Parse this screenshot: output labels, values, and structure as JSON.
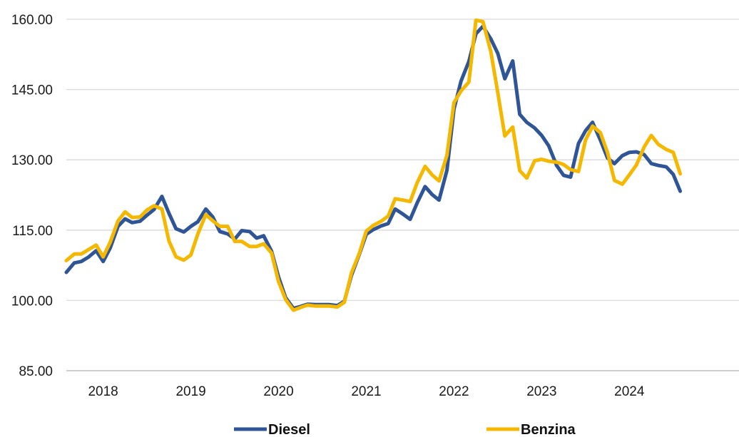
{
  "chart_data": {
    "type": "line",
    "title": "",
    "xlabel": "",
    "ylabel": "",
    "ylim": [
      85,
      160
    ],
    "y_ticks": [
      "85.00",
      "100.00",
      "115.00",
      "130.00",
      "145.00",
      "160.00"
    ],
    "x_tick_labels": [
      "2018",
      "2019",
      "2020",
      "2021",
      "2022",
      "2023",
      "2024"
    ],
    "x_tick_dates": [
      2018.0,
      2019.0,
      2020.0,
      2021.0,
      2022.0,
      2023.0,
      2024.0
    ],
    "xlim": [
      2017.58,
      2025.25
    ],
    "grid": true,
    "legend_position": "bottom",
    "series": [
      {
        "name": "Diesel",
        "color": "#2f5597",
        "points": [
          [
            2017.58,
            106.0
          ],
          [
            2017.67,
            108.0
          ],
          [
            2017.75,
            108.3
          ],
          [
            2017.83,
            109.2
          ],
          [
            2017.92,
            110.6
          ],
          [
            2018.0,
            108.3
          ],
          [
            2018.08,
            111.2
          ],
          [
            2018.17,
            115.8
          ],
          [
            2018.25,
            117.4
          ],
          [
            2018.33,
            116.6
          ],
          [
            2018.42,
            116.9
          ],
          [
            2018.5,
            118.2
          ],
          [
            2018.58,
            119.4
          ],
          [
            2018.67,
            122.2
          ],
          [
            2018.75,
            118.6
          ],
          [
            2018.83,
            115.3
          ],
          [
            2018.92,
            114.6
          ],
          [
            2019.0,
            115.8
          ],
          [
            2019.08,
            116.8
          ],
          [
            2019.17,
            119.5
          ],
          [
            2019.25,
            117.8
          ],
          [
            2019.33,
            114.7
          ],
          [
            2019.42,
            114.2
          ],
          [
            2019.5,
            113.1
          ],
          [
            2019.58,
            114.9
          ],
          [
            2019.67,
            114.7
          ],
          [
            2019.75,
            113.3
          ],
          [
            2019.83,
            113.8
          ],
          [
            2019.92,
            110.5
          ],
          [
            2020.0,
            105.0
          ],
          [
            2020.08,
            100.6
          ],
          [
            2020.17,
            98.3
          ],
          [
            2020.25,
            98.7
          ],
          [
            2020.33,
            99.2
          ],
          [
            2020.42,
            99.1
          ],
          [
            2020.5,
            99.1
          ],
          [
            2020.58,
            99.1
          ],
          [
            2020.67,
            98.9
          ],
          [
            2020.75,
            99.8
          ],
          [
            2020.83,
            105.3
          ],
          [
            2020.92,
            109.8
          ],
          [
            2021.0,
            114.1
          ],
          [
            2021.08,
            115.1
          ],
          [
            2021.17,
            115.9
          ],
          [
            2021.25,
            116.4
          ],
          [
            2021.33,
            119.5
          ],
          [
            2021.42,
            118.4
          ],
          [
            2021.5,
            117.3
          ],
          [
            2021.58,
            120.8
          ],
          [
            2021.67,
            124.3
          ],
          [
            2021.75,
            122.6
          ],
          [
            2021.83,
            121.4
          ],
          [
            2021.92,
            127.8
          ],
          [
            2022.0,
            140.8
          ],
          [
            2022.08,
            146.8
          ],
          [
            2022.17,
            151.0
          ],
          [
            2022.25,
            156.9
          ],
          [
            2022.33,
            158.5
          ],
          [
            2022.42,
            155.8
          ],
          [
            2022.5,
            152.7
          ],
          [
            2022.58,
            147.3
          ],
          [
            2022.67,
            151.1
          ],
          [
            2022.75,
            139.7
          ],
          [
            2022.83,
            138.0
          ],
          [
            2022.92,
            136.8
          ],
          [
            2023.0,
            135.2
          ],
          [
            2023.08,
            133.0
          ],
          [
            2023.17,
            128.8
          ],
          [
            2023.25,
            126.7
          ],
          [
            2023.33,
            126.3
          ],
          [
            2023.42,
            133.5
          ],
          [
            2023.5,
            136.2
          ],
          [
            2023.58,
            138.0
          ],
          [
            2023.67,
            134.2
          ],
          [
            2023.75,
            130.4
          ],
          [
            2023.83,
            129.2
          ],
          [
            2023.92,
            130.9
          ],
          [
            2024.0,
            131.6
          ],
          [
            2024.08,
            131.7
          ],
          [
            2024.17,
            131.1
          ],
          [
            2024.25,
            129.2
          ],
          [
            2024.33,
            128.8
          ],
          [
            2024.42,
            128.5
          ],
          [
            2024.5,
            126.9
          ],
          [
            2024.58,
            123.3
          ]
        ]
      },
      {
        "name": "Benzina",
        "color": "#f4b800",
        "points": [
          [
            2017.58,
            108.5
          ],
          [
            2017.67,
            109.9
          ],
          [
            2017.75,
            109.9
          ],
          [
            2017.83,
            110.8
          ],
          [
            2017.92,
            111.8
          ],
          [
            2018.0,
            109.3
          ],
          [
            2018.08,
            112.4
          ],
          [
            2018.17,
            117.0
          ],
          [
            2018.25,
            118.9
          ],
          [
            2018.33,
            117.7
          ],
          [
            2018.42,
            117.8
          ],
          [
            2018.5,
            119.3
          ],
          [
            2018.58,
            120.2
          ],
          [
            2018.67,
            119.5
          ],
          [
            2018.75,
            112.7
          ],
          [
            2018.83,
            109.3
          ],
          [
            2018.92,
            108.6
          ],
          [
            2019.0,
            109.7
          ],
          [
            2019.08,
            114.2
          ],
          [
            2019.17,
            118.3
          ],
          [
            2019.25,
            117.0
          ],
          [
            2019.33,
            115.8
          ],
          [
            2019.42,
            115.8
          ],
          [
            2019.5,
            112.6
          ],
          [
            2019.58,
            112.6
          ],
          [
            2019.67,
            111.5
          ],
          [
            2019.75,
            111.5
          ],
          [
            2019.83,
            112.1
          ],
          [
            2019.92,
            110.1
          ],
          [
            2020.0,
            104.0
          ],
          [
            2020.08,
            100.2
          ],
          [
            2020.17,
            97.9
          ],
          [
            2020.25,
            98.5
          ],
          [
            2020.33,
            99.0
          ],
          [
            2020.42,
            98.8
          ],
          [
            2020.5,
            98.8
          ],
          [
            2020.58,
            98.8
          ],
          [
            2020.67,
            98.6
          ],
          [
            2020.75,
            99.6
          ],
          [
            2020.83,
            105.8
          ],
          [
            2020.92,
            110.0
          ],
          [
            2021.0,
            114.8
          ],
          [
            2021.08,
            116.0
          ],
          [
            2021.17,
            116.9
          ],
          [
            2021.25,
            118.0
          ],
          [
            2021.33,
            121.7
          ],
          [
            2021.42,
            121.4
          ],
          [
            2021.5,
            121.1
          ],
          [
            2021.58,
            125.1
          ],
          [
            2021.67,
            128.6
          ],
          [
            2021.75,
            126.8
          ],
          [
            2021.83,
            125.5
          ],
          [
            2021.92,
            131.0
          ],
          [
            2022.0,
            142.2
          ],
          [
            2022.08,
            144.7
          ],
          [
            2022.17,
            146.6
          ],
          [
            2022.25,
            159.8
          ],
          [
            2022.33,
            159.5
          ],
          [
            2022.42,
            153.1
          ],
          [
            2022.5,
            144.3
          ],
          [
            2022.58,
            135.1
          ],
          [
            2022.67,
            137.0
          ],
          [
            2022.75,
            127.7
          ],
          [
            2022.83,
            126.1
          ],
          [
            2022.92,
            129.8
          ],
          [
            2023.0,
            130.1
          ],
          [
            2023.08,
            129.7
          ],
          [
            2023.17,
            129.5
          ],
          [
            2023.25,
            129.0
          ],
          [
            2023.33,
            127.9
          ],
          [
            2023.42,
            127.5
          ],
          [
            2023.5,
            134.2
          ],
          [
            2023.58,
            137.2
          ],
          [
            2023.67,
            135.8
          ],
          [
            2023.75,
            131.6
          ],
          [
            2023.83,
            125.6
          ],
          [
            2023.92,
            124.8
          ],
          [
            2024.0,
            126.8
          ],
          [
            2024.08,
            128.9
          ],
          [
            2024.17,
            132.8
          ],
          [
            2024.25,
            135.2
          ],
          [
            2024.33,
            133.3
          ],
          [
            2024.42,
            132.2
          ],
          [
            2024.5,
            131.6
          ],
          [
            2024.58,
            127.0
          ]
        ]
      }
    ]
  }
}
